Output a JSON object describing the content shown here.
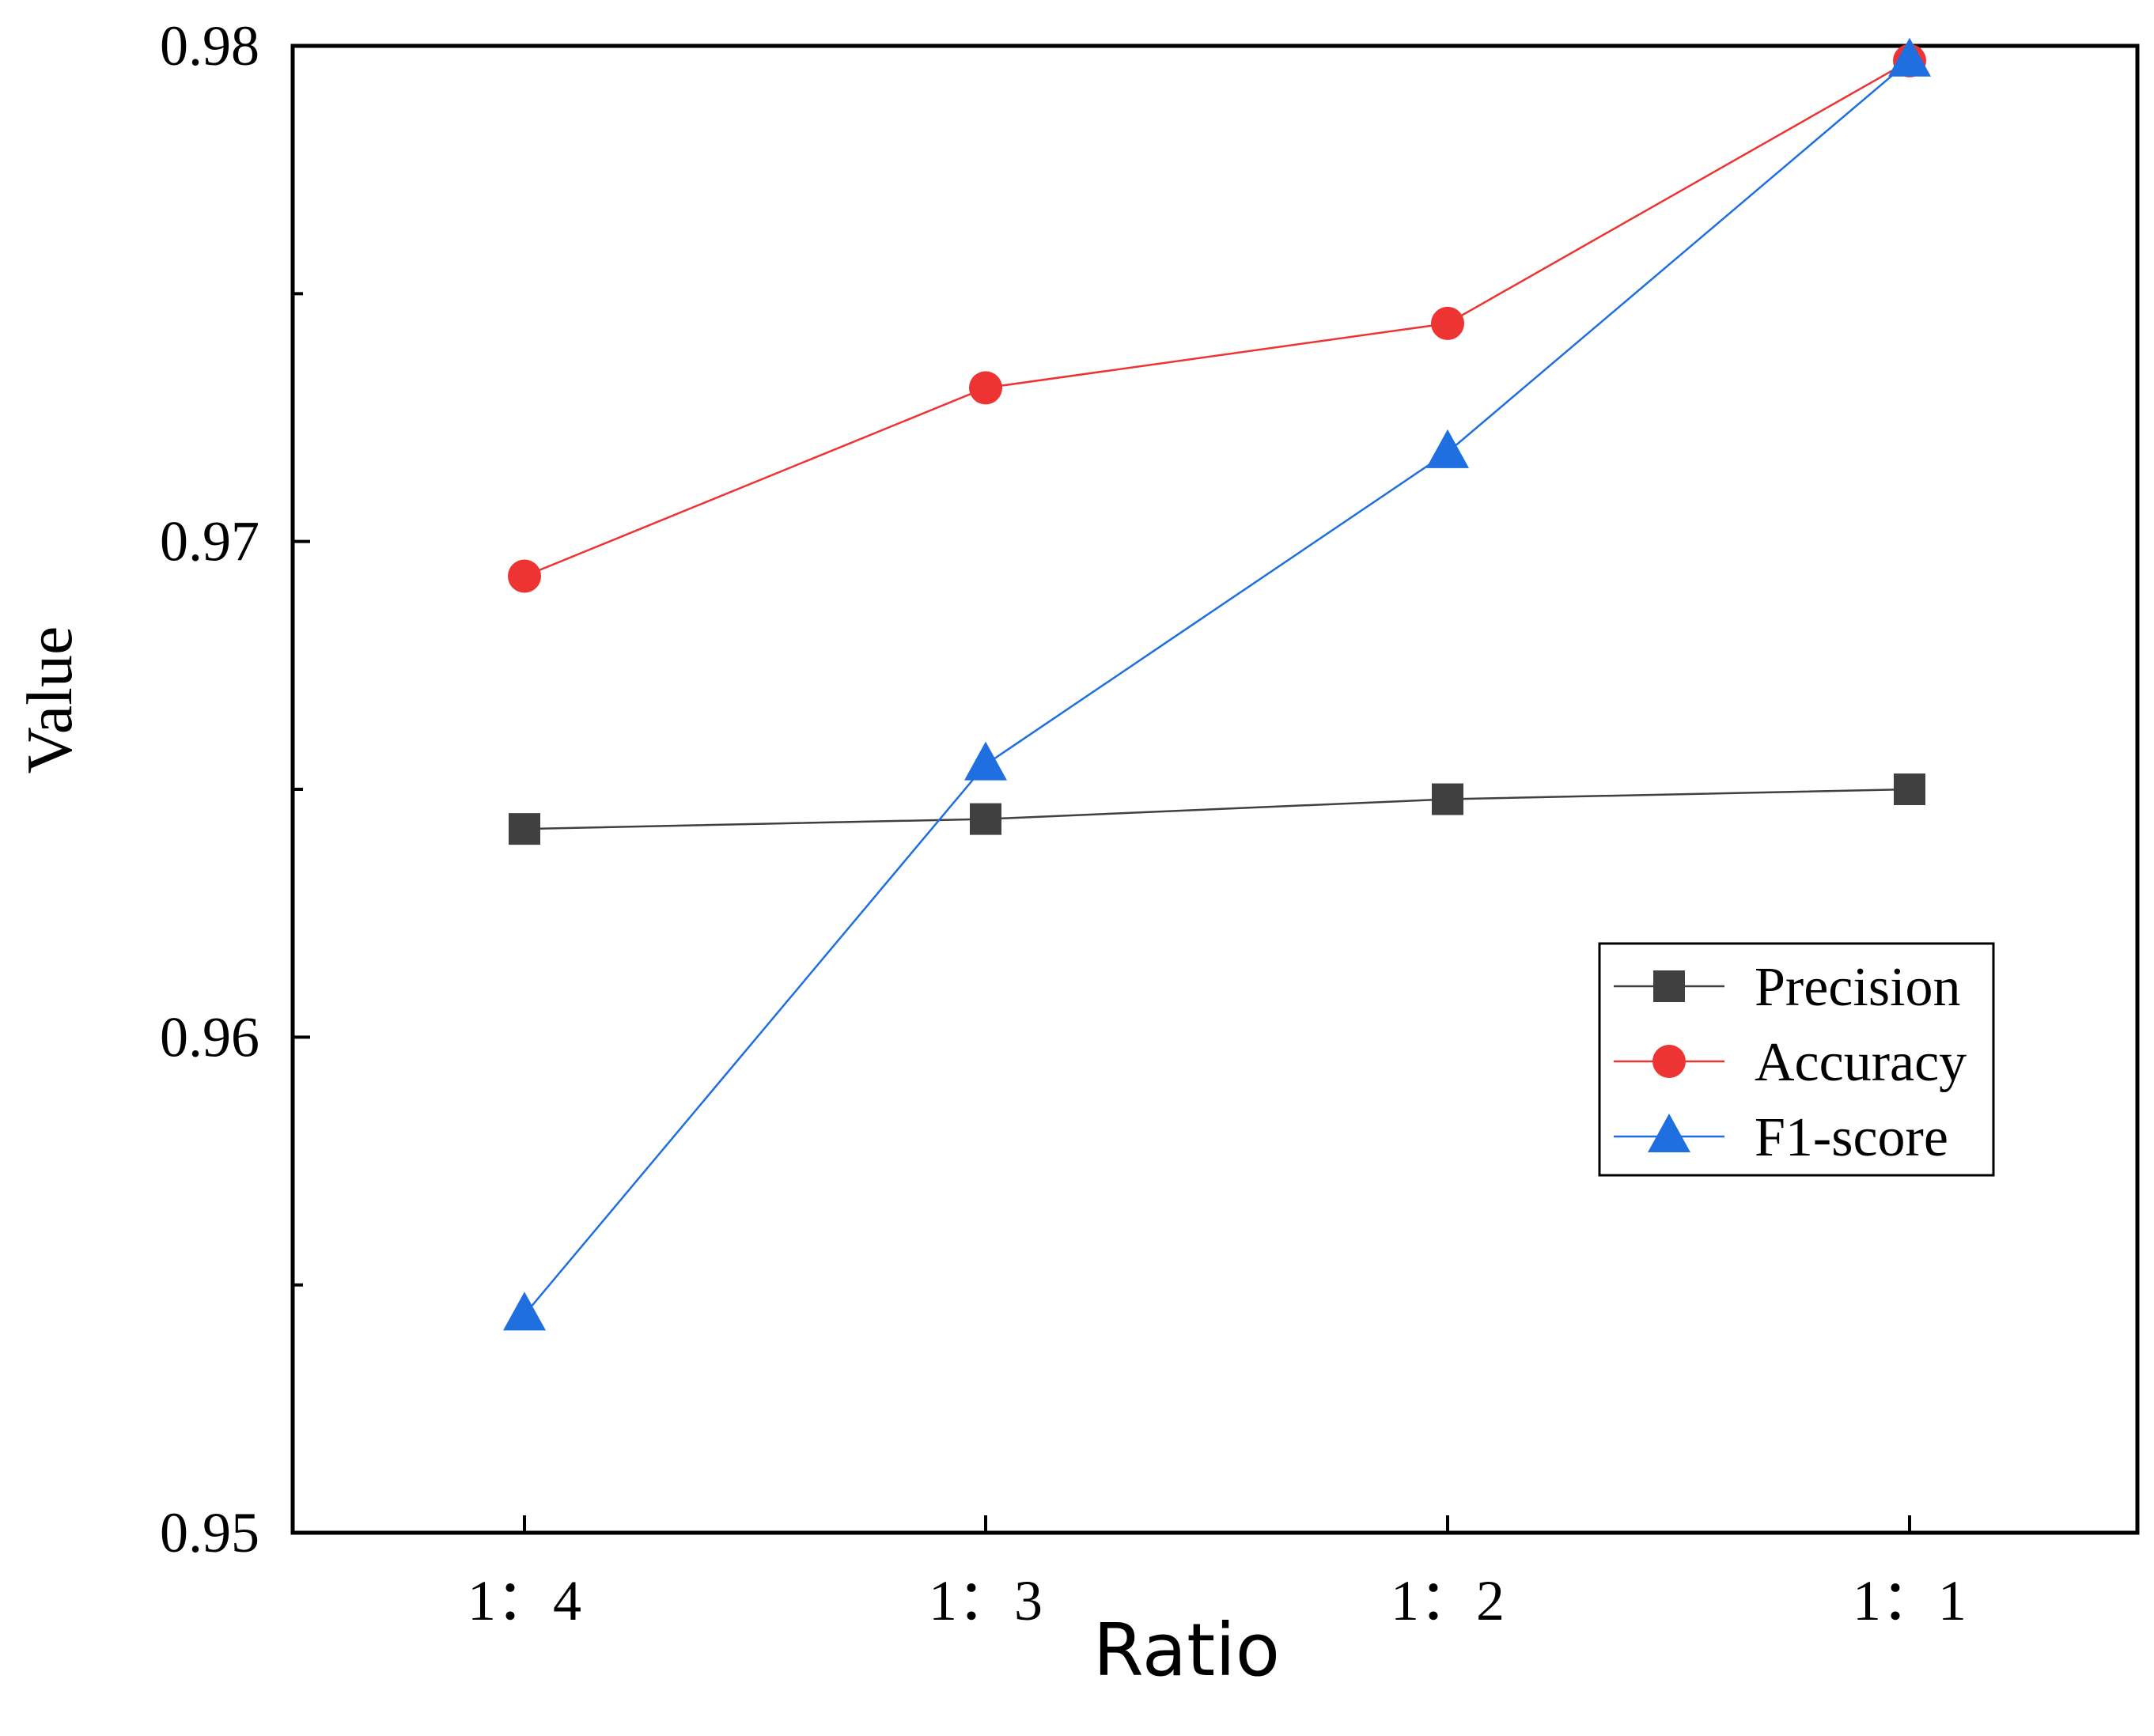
{
  "chart_data": {
    "type": "line",
    "title": "",
    "xlabel": "Ratio",
    "ylabel": "Value",
    "categories": [
      "1：4",
      "1：3",
      "1：2",
      "1：1"
    ],
    "ylim": [
      0.95,
      0.98
    ],
    "yticks": [
      0.95,
      0.96,
      0.97,
      0.98
    ],
    "ytick_labels": [
      "0.95",
      "0.96",
      "0.97",
      "0.98"
    ],
    "yminor_ticks": [
      0.955,
      0.965,
      0.975
    ],
    "grid": false,
    "legend_position": "center-right",
    "series": [
      {
        "name": "Precision",
        "marker": "square",
        "color": "#404040",
        "values": [
          0.9642,
          0.9644,
          0.9648,
          0.965
        ]
      },
      {
        "name": "Accuracy",
        "marker": "circle",
        "color": "#ee3333",
        "values": [
          0.9693,
          0.9731,
          0.9744,
          0.9797
        ]
      },
      {
        "name": "F1-score",
        "marker": "triangle",
        "color": "#1f6fe0",
        "values": [
          0.9544,
          0.9655,
          0.9718,
          0.9797
        ]
      }
    ]
  }
}
